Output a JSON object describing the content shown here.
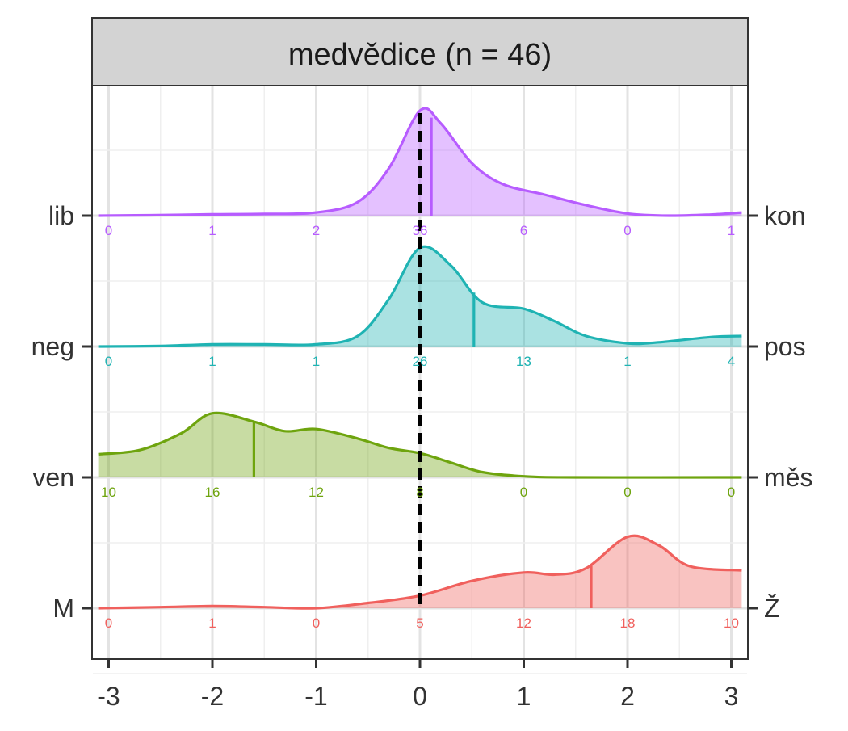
{
  "chart_data": {
    "type": "ridgeline-density",
    "panel_title": "medvědice (n = 46)",
    "x_ticks": [
      "-3",
      "-2",
      "-1",
      "0",
      "1",
      "2",
      "3"
    ],
    "x_range": [
      -3.1,
      3.1
    ],
    "x_values": [
      -3,
      -2,
      -1,
      0,
      1,
      2,
      3
    ],
    "reference_line": 0,
    "grid": true,
    "series": [
      {
        "left_label": "lib",
        "right_label": "kon",
        "color": "#B75CFF",
        "mean": 0.11,
        "counts": [
          "0",
          "1",
          "2",
          "36",
          "6",
          "0",
          "1"
        ],
        "peak": 1.0,
        "density_xy": [
          [
            -3.1,
            0.0
          ],
          [
            -2.6,
            0.004
          ],
          [
            -2.0,
            0.012
          ],
          [
            -1.5,
            0.016
          ],
          [
            -1.0,
            0.03
          ],
          [
            -0.6,
            0.13
          ],
          [
            -0.3,
            0.45
          ],
          [
            0.0,
            1.0
          ],
          [
            0.2,
            0.88
          ],
          [
            0.5,
            0.5
          ],
          [
            0.8,
            0.3
          ],
          [
            1.2,
            0.2
          ],
          [
            1.6,
            0.1
          ],
          [
            2.0,
            0.02
          ],
          [
            2.4,
            0.0
          ],
          [
            2.8,
            0.01
          ],
          [
            3.1,
            0.03
          ]
        ]
      },
      {
        "left_label": "neg",
        "right_label": "pos",
        "color": "#1FB3B3",
        "mean": 0.52,
        "counts": [
          "0",
          "1",
          "1",
          "26",
          "13",
          "1",
          "4"
        ],
        "peak": 0.94,
        "density_xy": [
          [
            -3.1,
            0.0
          ],
          [
            -2.5,
            0.005
          ],
          [
            -2.0,
            0.02
          ],
          [
            -1.5,
            0.02
          ],
          [
            -1.0,
            0.02
          ],
          [
            -0.6,
            0.1
          ],
          [
            -0.3,
            0.45
          ],
          [
            0.0,
            0.94
          ],
          [
            0.3,
            0.77
          ],
          [
            0.6,
            0.42
          ],
          [
            1.0,
            0.36
          ],
          [
            1.3,
            0.24
          ],
          [
            1.6,
            0.1
          ],
          [
            2.0,
            0.03
          ],
          [
            2.3,
            0.04
          ],
          [
            2.8,
            0.09
          ],
          [
            3.1,
            0.1
          ]
        ]
      },
      {
        "left_label": "ven",
        "right_label": "měs",
        "color": "#6EA40E",
        "mean": -1.6,
        "counts": [
          "10",
          "16",
          "12",
          "8",
          "0",
          "0",
          "0"
        ],
        "peak": 0.61,
        "density_xy": [
          [
            -3.1,
            0.22
          ],
          [
            -2.7,
            0.26
          ],
          [
            -2.3,
            0.42
          ],
          [
            -2.0,
            0.61
          ],
          [
            -1.6,
            0.53
          ],
          [
            -1.3,
            0.44
          ],
          [
            -1.0,
            0.46
          ],
          [
            -0.6,
            0.37
          ],
          [
            -0.3,
            0.28
          ],
          [
            0.0,
            0.23
          ],
          [
            0.3,
            0.14
          ],
          [
            0.6,
            0.05
          ],
          [
            1.0,
            0.01
          ],
          [
            1.5,
            0.0
          ],
          [
            3.1,
            0.0
          ]
        ]
      },
      {
        "left_label": "M",
        "right_label": "Ž",
        "color": "#F0605D",
        "mean": 1.65,
        "counts": [
          "0",
          "1",
          "0",
          "5",
          "12",
          "18",
          "10"
        ],
        "peak": 0.68,
        "density_xy": [
          [
            -3.1,
            0.0
          ],
          [
            -2.5,
            0.01
          ],
          [
            -2.0,
            0.02
          ],
          [
            -1.5,
            0.01
          ],
          [
            -1.0,
            0.0
          ],
          [
            -0.5,
            0.05
          ],
          [
            0.0,
            0.12
          ],
          [
            0.5,
            0.26
          ],
          [
            1.0,
            0.34
          ],
          [
            1.3,
            0.32
          ],
          [
            1.6,
            0.38
          ],
          [
            2.0,
            0.68
          ],
          [
            2.3,
            0.6
          ],
          [
            2.6,
            0.4
          ],
          [
            3.1,
            0.36
          ]
        ]
      }
    ]
  }
}
